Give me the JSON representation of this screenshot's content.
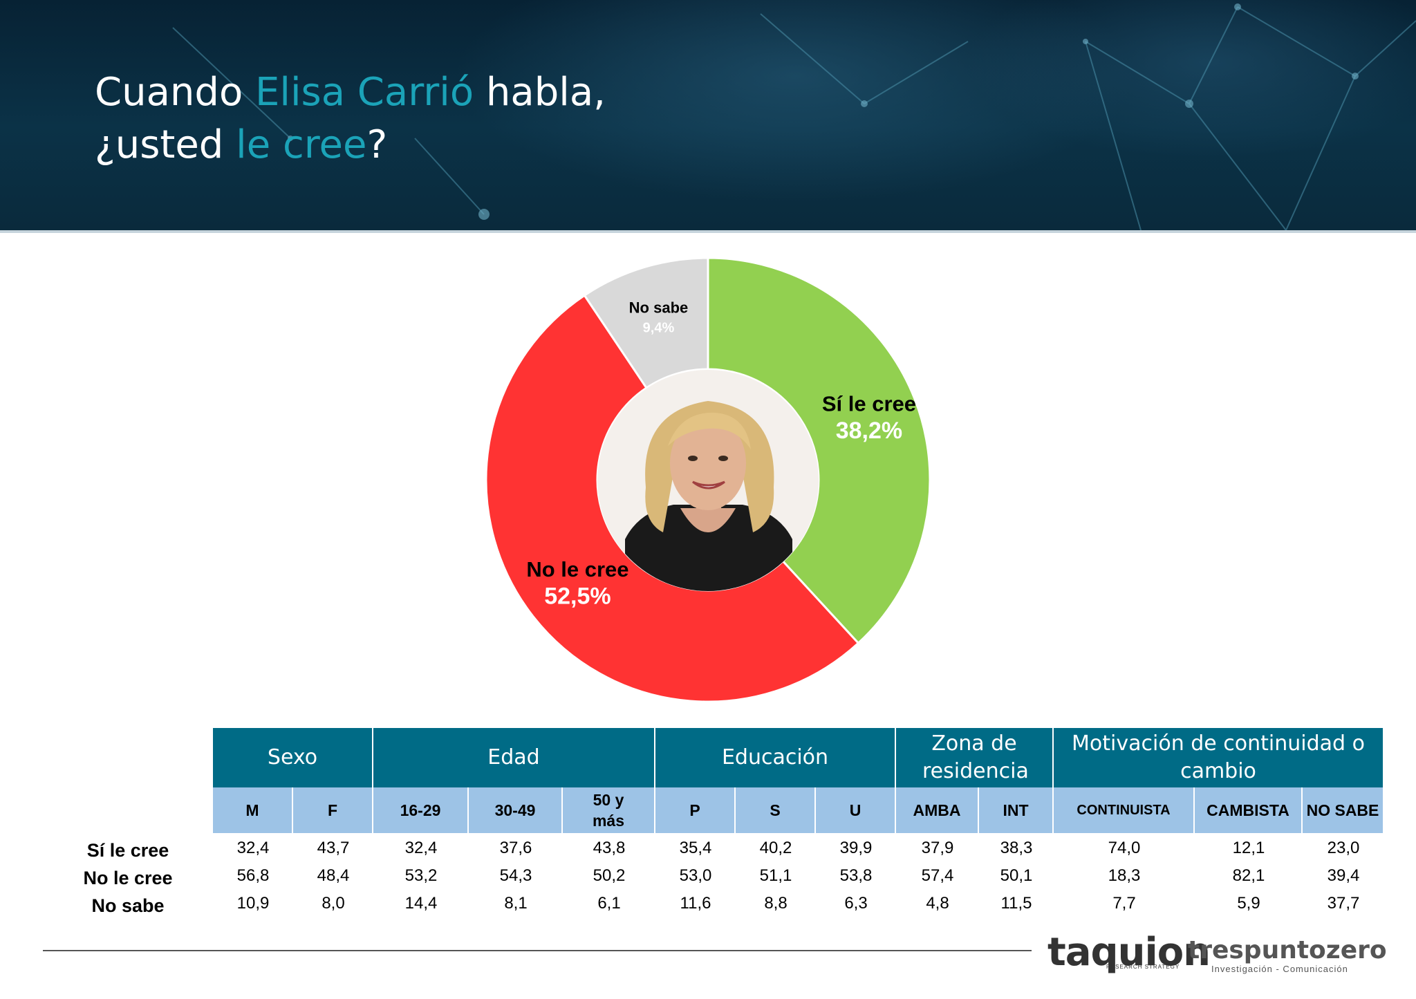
{
  "title": {
    "line1_a": "Cuando ",
    "line1_b": "Elisa Carrió",
    "line1_c": " habla,",
    "line2_a": "¿usted ",
    "line2_b": "le cree",
    "line2_c": "?"
  },
  "colors": {
    "accent": "#1ba3b8",
    "header_bg": "#0b3247",
    "table_header": "#006b86",
    "table_subheader": "#9dc3e6",
    "si": "#92d050",
    "no": "#ff3333",
    "nosabe": "#d9d9d9"
  },
  "chart_data": {
    "type": "pie",
    "slices": [
      {
        "label": "Sí le cree",
        "value": 38.2,
        "value_label": "38,2%",
        "color": "#92d050"
      },
      {
        "label": "No le cree",
        "value": 52.5,
        "value_label": "52,5%",
        "color": "#ff3333"
      },
      {
        "label": "No sabe",
        "value": 9.4,
        "value_label": "9,4%",
        "color": "#d9d9d9"
      }
    ]
  },
  "table": {
    "groups": [
      {
        "label": "Sexo",
        "span": 2
      },
      {
        "label": "Edad",
        "span": 3
      },
      {
        "label": "Educación",
        "span": 3
      },
      {
        "label": "Zona de residencia",
        "span": 2
      },
      {
        "label": "Motivación de continuidad o cambio",
        "span": 3
      }
    ],
    "columns": [
      "M",
      "F",
      "16-29",
      "30-49",
      "50 y más",
      "P",
      "S",
      "U",
      "AMBA",
      "INT",
      "CONTINUISTA",
      "CAMBISTA",
      "NO SABE"
    ],
    "rows": [
      {
        "label": "Sí le cree",
        "values": [
          "32,4",
          "43,7",
          "32,4",
          "37,6",
          "43,8",
          "35,4",
          "40,2",
          "39,9",
          "37,9",
          "38,3",
          "74,0",
          "12,1",
          "23,0"
        ]
      },
      {
        "label": "No le cree",
        "values": [
          "56,8",
          "48,4",
          "53,2",
          "54,3",
          "50,2",
          "53,0",
          "51,1",
          "53,8",
          "57,4",
          "50,1",
          "18,3",
          "82,1",
          "39,4"
        ]
      },
      {
        "label": "No sabe",
        "values": [
          "10,9",
          "8,0",
          "14,4",
          "8,1",
          "6,1",
          "11,6",
          "8,8",
          "6,3",
          "4,8",
          "11,5",
          "7,7",
          "5,9",
          "37,7"
        ]
      }
    ]
  },
  "footer": {
    "logo1": "taquion",
    "logo1_sub": "RESEARCH STRATEGY",
    "logo2": "trespuntozero",
    "logo2_sub": "Investigación - Comunicación"
  }
}
